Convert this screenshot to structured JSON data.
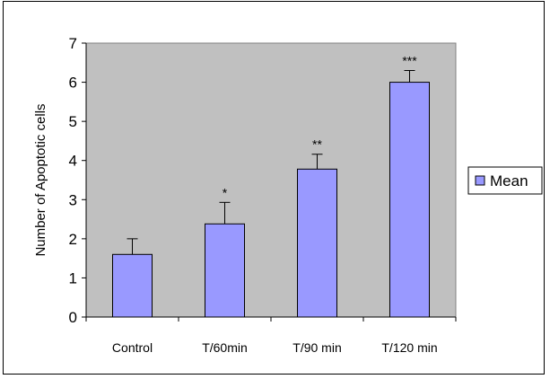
{
  "chart_data": {
    "type": "bar",
    "categories": [
      "Control",
      "T/60min",
      "T/90 min",
      "T/120 min"
    ],
    "series": [
      {
        "name": "Mean",
        "values": [
          1.6,
          2.38,
          3.78,
          6.0
        ],
        "errors": [
          0.4,
          0.55,
          0.38,
          0.3
        ],
        "significance": [
          "",
          "*",
          "**",
          "***"
        ]
      }
    ],
    "xlabel": "",
    "ylabel": "Number of Apoptotic cells",
    "ylim": [
      0,
      7
    ],
    "yticks": [
      0,
      1,
      2,
      3,
      4,
      5,
      6,
      7
    ],
    "grid": false,
    "legend": "right",
    "colors": {
      "bar_fill": "#9999ff",
      "bar_stroke": "#000000",
      "plot_background": "#c0c0c0"
    }
  }
}
